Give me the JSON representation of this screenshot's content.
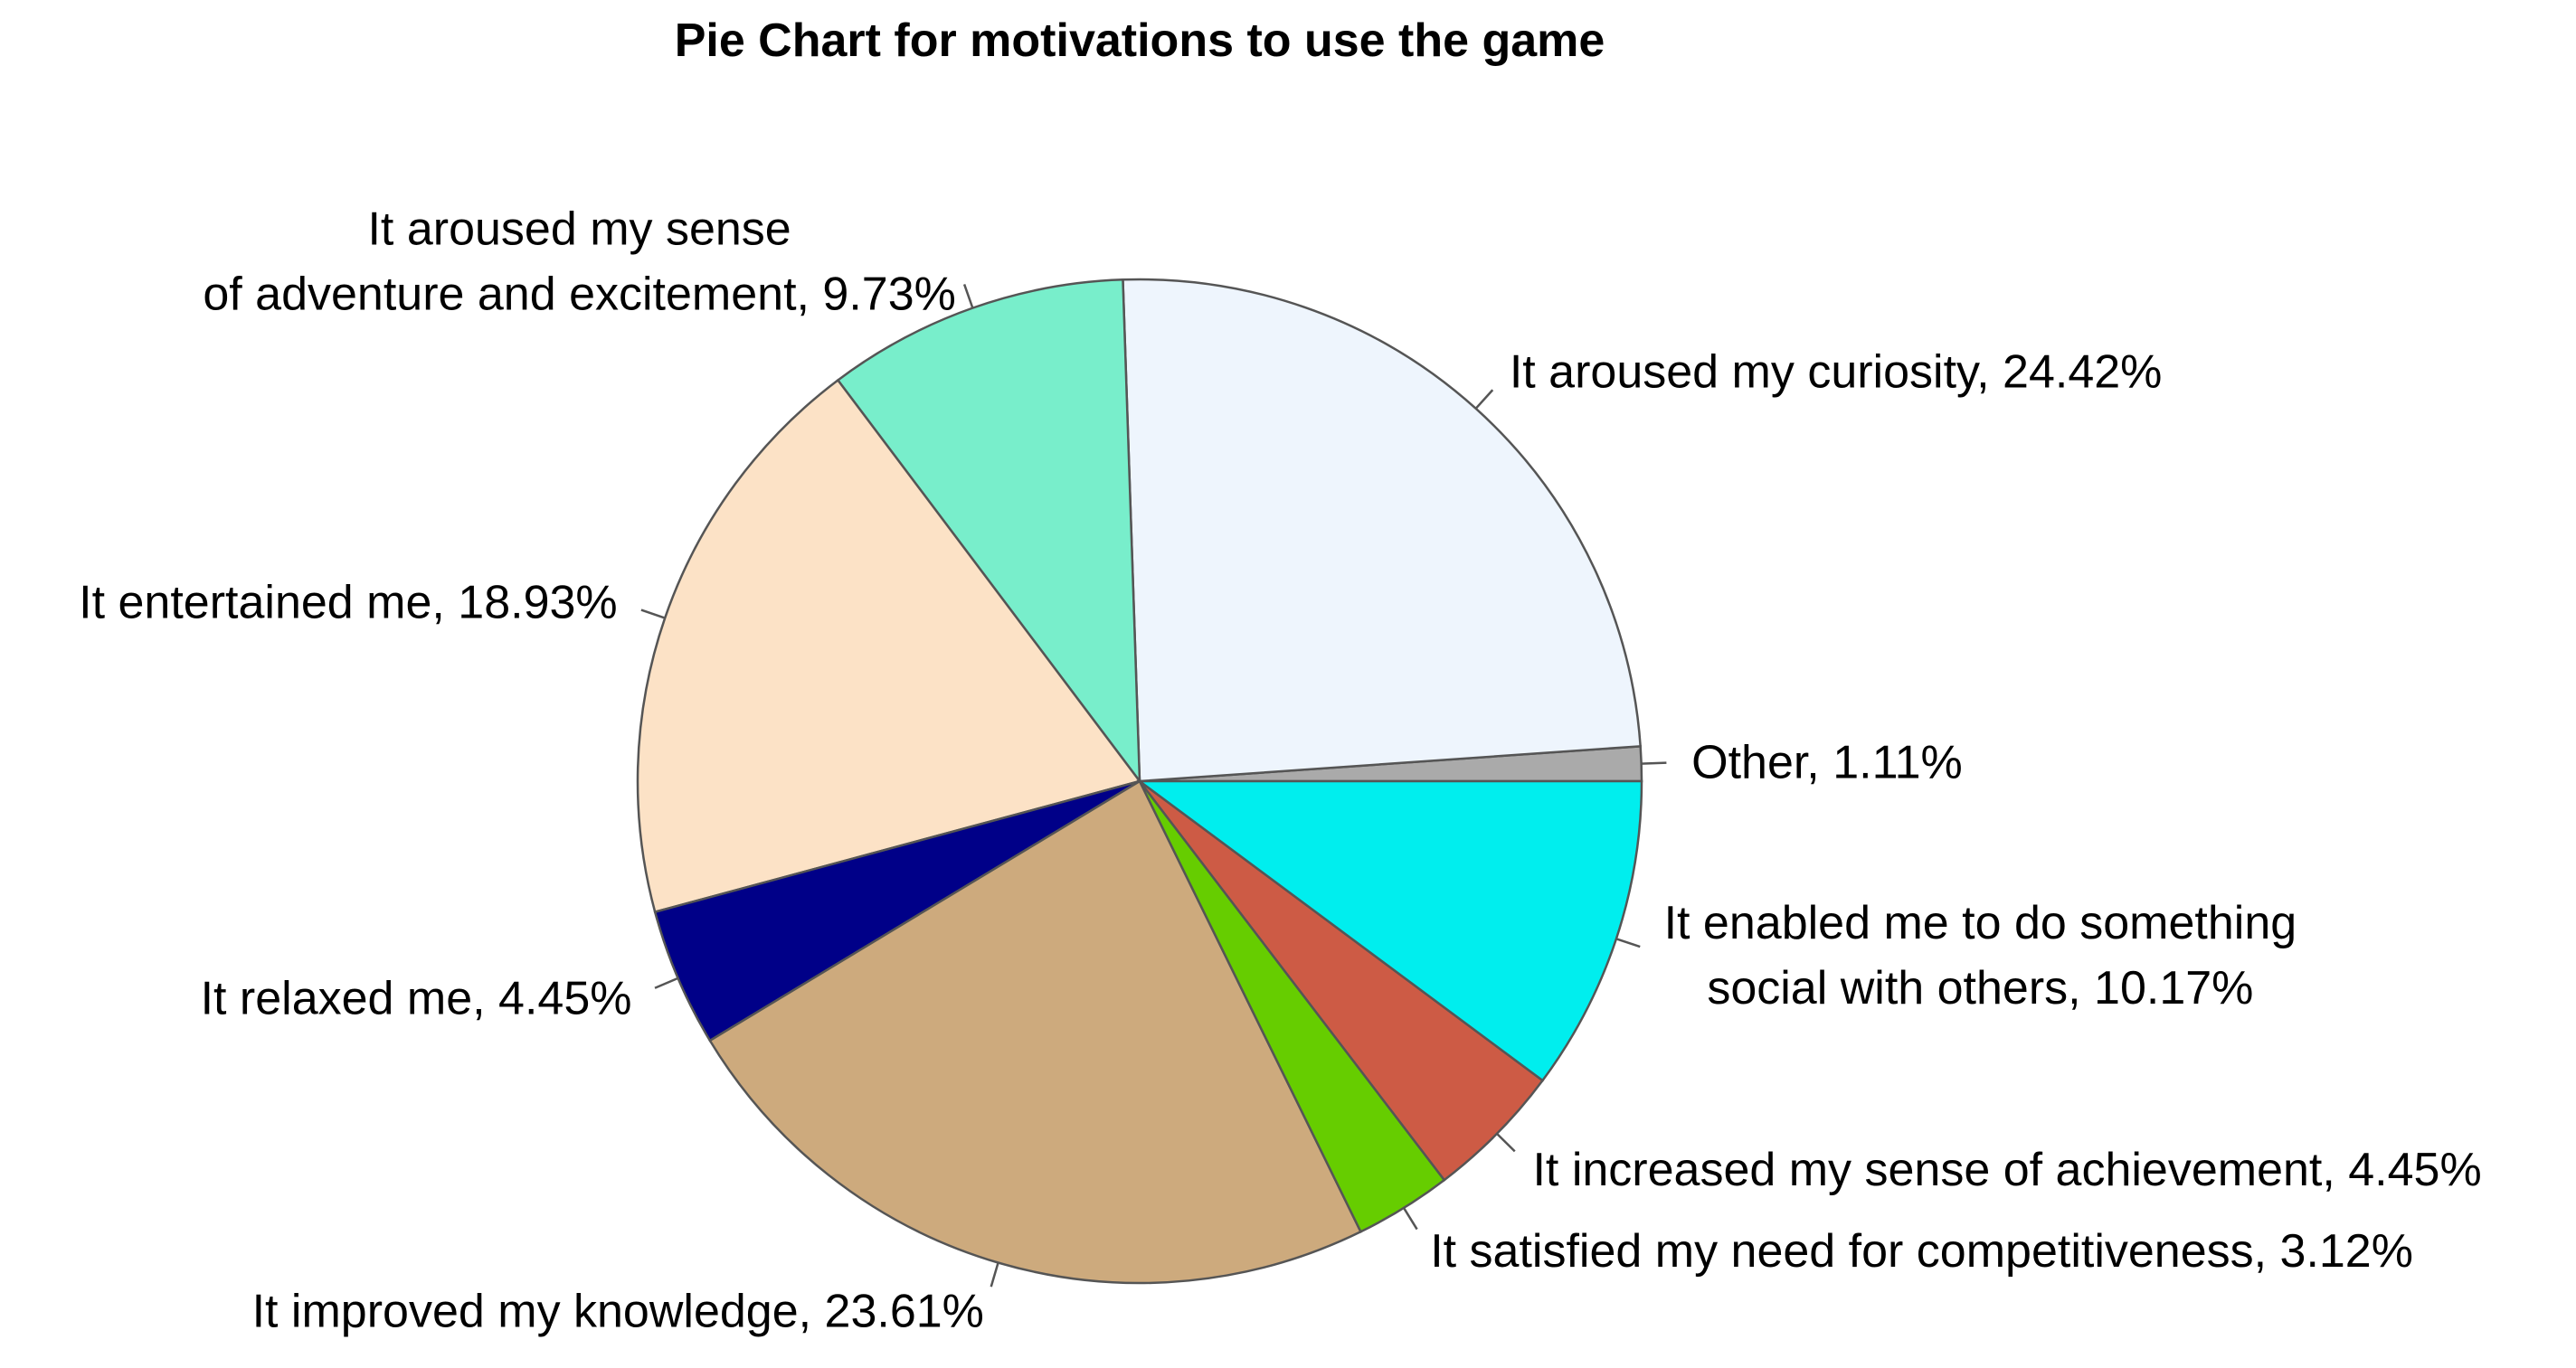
{
  "chart_data": {
    "type": "pie",
    "title": "Pie Chart for motivations to use the game",
    "slices": [
      {
        "lines": [
          "Other, 1.11%"
        ],
        "value": 1.11,
        "color": "#aaaaaa"
      },
      {
        "lines": [
          "It aroused my curiosity, 24.42%"
        ],
        "value": 24.42,
        "color": "#eef5fd"
      },
      {
        "lines": [
          "It aroused my sense",
          "of adventure and excitement, 9.73%"
        ],
        "value": 9.73,
        "color": "#78eecb"
      },
      {
        "lines": [
          "It entertained me, 18.93%"
        ],
        "value": 18.93,
        "color": "#fce2c6"
      },
      {
        "lines": [
          "It relaxed me, 4.45%"
        ],
        "value": 4.45,
        "color": "#000088"
      },
      {
        "lines": [
          "It improved my knowledge, 23.61%"
        ],
        "value": 23.61,
        "color": "#cdaa7d"
      },
      {
        "lines": [
          "It satisfied my need for competitiveness, 3.12%"
        ],
        "value": 3.12,
        "color": "#66cd00"
      },
      {
        "lines": [
          "It increased my sense of achievement, 4.45%"
        ],
        "value": 4.45,
        "color": "#cd5b45"
      },
      {
        "lines": [
          "It enabled me to do something",
          "social with others, 10.17%"
        ],
        "value": 10.17,
        "color": "#00eeee"
      }
    ]
  }
}
